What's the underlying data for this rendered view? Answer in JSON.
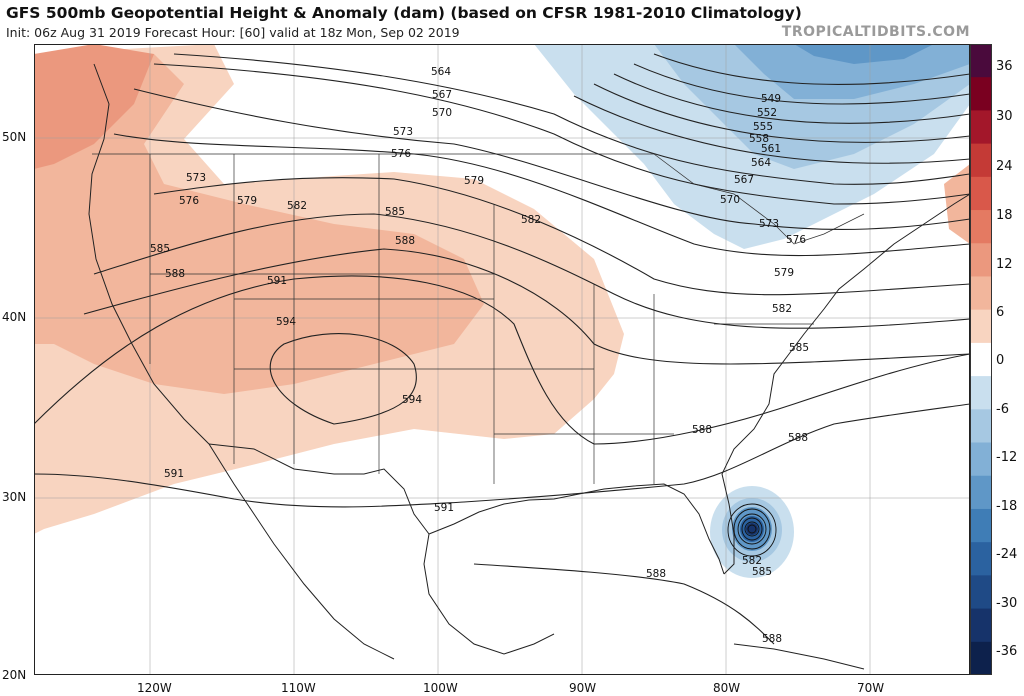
{
  "header": {
    "title": "GFS 500mb Geopotential Height & Anomaly (dam) (based on CFSR 1981-2010 Climatology)",
    "subtitle": "Init: 06z Aug 31 2019   Forecast Hour: [60]   valid at 18z Mon, Sep 02 2019",
    "brand": "TROPICALTIDBITS.COM"
  },
  "axes": {
    "lat_labels": [
      "50N",
      "40N",
      "30N",
      "20N"
    ],
    "lon_labels": [
      "120W",
      "110W",
      "100W",
      "90W",
      "80W",
      "70W"
    ]
  },
  "colorbar": {
    "labels": [
      "36",
      "30",
      "24",
      "18",
      "12",
      "6",
      "0",
      "-6",
      "-12",
      "-18",
      "-24",
      "-30",
      "-36"
    ],
    "colors": [
      "#4a0a3c",
      "#7a0020",
      "#a3172a",
      "#c43a36",
      "#d9584a",
      "#e47a62",
      "#eb987e",
      "#f2b69c",
      "#f8d4c0",
      "#ffffff",
      "#c9dfee",
      "#a6c8e2",
      "#82b0d6",
      "#5f97c7",
      "#3f7db6",
      "#2b62a0",
      "#1f4a86",
      "#16336a",
      "#0d214c"
    ]
  },
  "contour_labels": {
    "l549": "549",
    "l552": "552",
    "l555": "555",
    "l558": "558",
    "l561": "561",
    "l564a": "564",
    "l567a": "567",
    "l570a": "570",
    "l564b": "564",
    "l567b": "567",
    "l570b": "570",
    "l573a": "573",
    "l573b": "573",
    "l573c": "573",
    "l576a": "576",
    "l576b": "576",
    "l576c": "576",
    "l579a": "579",
    "l579b": "579",
    "l579c": "579",
    "l582a": "582",
    "l582b": "582",
    "l582c": "582",
    "l582d": "582",
    "l585a": "585",
    "l585b": "585",
    "l585c": "585",
    "l585d": "585",
    "l588a": "588",
    "l588b": "588",
    "l588c": "588",
    "l588d": "588",
    "l588e": "588",
    "l588f": "588",
    "l591a": "591",
    "l591b": "591",
    "l591c": "591",
    "l594a": "594",
    "l594b": "594"
  }
}
